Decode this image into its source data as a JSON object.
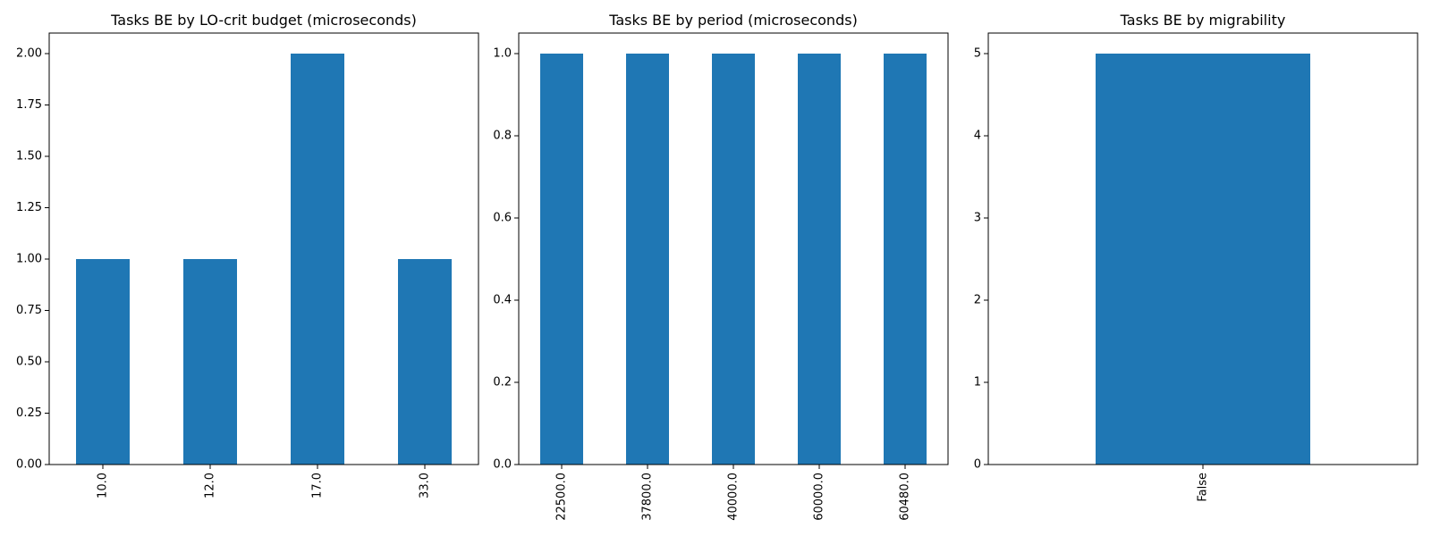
{
  "chart_data": [
    {
      "type": "bar",
      "title": "Tasks BE by LO-crit budget (microseconds)",
      "categories": [
        "10.0",
        "12.0",
        "17.0",
        "33.0"
      ],
      "values": [
        1,
        1,
        2,
        1
      ],
      "xlabel": "",
      "ylabel": "",
      "ylim": [
        0,
        2.1
      ],
      "yticks": [
        "0.00",
        "0.25",
        "0.50",
        "0.75",
        "1.00",
        "1.25",
        "1.50",
        "1.75",
        "2.00"
      ],
      "bar_color": "#1f77b4",
      "grid": false,
      "legend": "none"
    },
    {
      "type": "bar",
      "title": "Tasks BE by period (microseconds)",
      "categories": [
        "22500.0",
        "37800.0",
        "40000.0",
        "60000.0",
        "60480.0"
      ],
      "values": [
        1,
        1,
        1,
        1,
        1
      ],
      "xlabel": "",
      "ylabel": "",
      "ylim": [
        0,
        1.05
      ],
      "yticks": [
        "0.0",
        "0.2",
        "0.4",
        "0.6",
        "0.8",
        "1.0"
      ],
      "bar_color": "#1f77b4",
      "grid": false,
      "legend": "none"
    },
    {
      "type": "bar",
      "title": "Tasks BE by migrability",
      "categories": [
        "False"
      ],
      "values": [
        5
      ],
      "xlabel": "",
      "ylabel": "",
      "ylim": [
        0,
        5.25
      ],
      "yticks": [
        "0",
        "1",
        "2",
        "3",
        "4",
        "5"
      ],
      "bar_color": "#1f77b4",
      "grid": false,
      "legend": "none"
    }
  ]
}
